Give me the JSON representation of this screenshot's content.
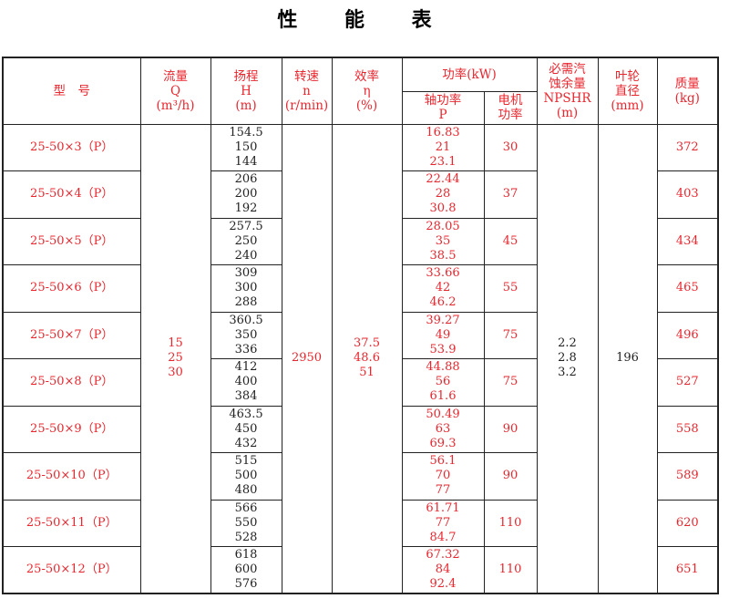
{
  "title": "性 能 表",
  "headers": {
    "model": "型　号",
    "flow": "流量\nQ\n(m³/h)",
    "head": "扬程\nH\n(m)",
    "speed": "转速\nn\n(r/min)",
    "eff": "效率\nη\n(%)",
    "power": "功率(kW)",
    "shaft": "轴功率\nP",
    "motor": "电机\n功率",
    "npshr": "必需汽\n蚀余量\nNPSHR\n(m)",
    "impeller": "叶轮\n直径\n(mm)",
    "mass": "质量\n(kg)"
  },
  "shared": {
    "flow": "15\n25\n30",
    "speed": "2950",
    "eff": "37.5\n48.6\n51",
    "npshr": "2.2\n2.8\n3.2",
    "impeller": "196"
  },
  "rows": [
    {
      "model": "25-50×3（P）",
      "head": "154.5\n150\n144",
      "shaft": "16.83\n21\n23.1",
      "motor": "30",
      "mass": "372"
    },
    {
      "model": "25-50×4（P）",
      "head": "206\n200\n192",
      "shaft": "22.44\n28\n30.8",
      "motor": "37",
      "mass": "403"
    },
    {
      "model": "25-50×5（P）",
      "head": "257.5\n250\n240",
      "shaft": "28.05\n35\n38.5",
      "motor": "45",
      "mass": "434"
    },
    {
      "model": "25-50×6（P）",
      "head": "309\n300\n288",
      "shaft": "33.66\n42\n46.2",
      "motor": "55",
      "mass": "465"
    },
    {
      "model": "25-50×7（P）",
      "head": "360.5\n350\n336",
      "shaft": "39.27\n49\n53.9",
      "motor": "75",
      "mass": "496"
    },
    {
      "model": "25-50×8（P）",
      "head": "412\n400\n384",
      "shaft": "44.88\n56\n61.6",
      "motor": "75",
      "mass": "527"
    },
    {
      "model": "25-50×9（P）",
      "head": "463.5\n450\n432",
      "shaft": "50.49\n63\n69.3",
      "motor": "90",
      "mass": "558"
    },
    {
      "model": "25-50×10（P）",
      "head": "515\n500\n480",
      "shaft": "56.1\n70\n77",
      "motor": "90",
      "mass": "589"
    },
    {
      "model": "25-50×11（P）",
      "head": "566\n550\n528",
      "shaft": "61.71\n77\n84.7",
      "motor": "110",
      "mass": "620"
    },
    {
      "model": "25-50×12（P）",
      "head": "618\n600\n576",
      "shaft": "67.32\n84\n92.4",
      "motor": "110",
      "mass": "651"
    }
  ]
}
